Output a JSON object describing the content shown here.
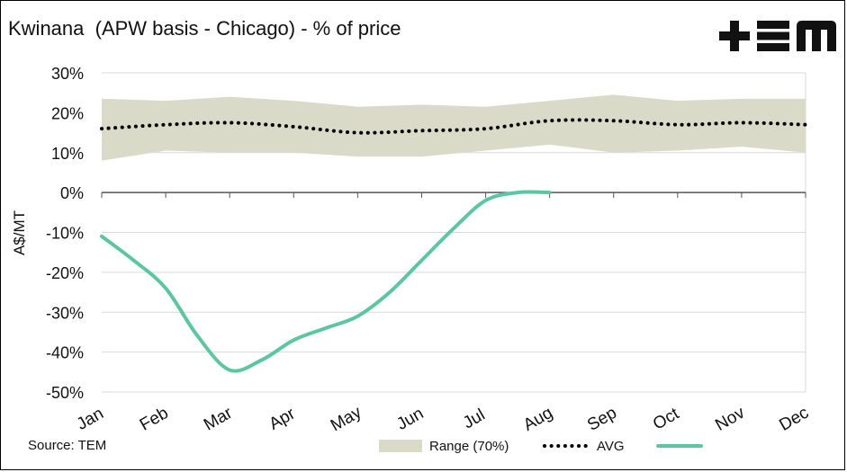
{
  "header": {
    "title": "Kwinana  (APW basis - Chicago) - % of price",
    "logo_text": "+EM"
  },
  "footer": {
    "source": "Source: TEM"
  },
  "colors": {
    "range_fill": "#d9dac8",
    "avg": "#000000",
    "current_line": "#5cc5a2",
    "grid": "#d9d9d9"
  },
  "chart_data": {
    "type": "line",
    "title": "Kwinana  (APW basis - Chicago) - % of price",
    "ylabel": "A$/MT",
    "xlabel": "",
    "categories": [
      "Jan",
      "Feb",
      "Mar",
      "Apr",
      "May",
      "Jun",
      "Jul",
      "Aug",
      "Sep",
      "Oct",
      "Nov",
      "Dec"
    ],
    "ylim": [
      -50,
      30
    ],
    "yticks": [
      30,
      20,
      10,
      0,
      -10,
      -20,
      -30,
      -40,
      -50
    ],
    "ytick_labels": [
      "30%",
      "20%",
      "10%",
      "0%",
      "-10%",
      "-20%",
      "-30%",
      "-40%",
      "-50%"
    ],
    "grid": true,
    "legend_position": "bottom",
    "series": [
      {
        "name": "Range (70%)",
        "kind": "band",
        "x": [
          0,
          1,
          2,
          3,
          4,
          5,
          6,
          7,
          8,
          9,
          10,
          11
        ],
        "upper": [
          23.5,
          23.0,
          24.0,
          23.0,
          21.5,
          22.0,
          21.5,
          23.0,
          24.5,
          23.0,
          23.5,
          23.5
        ],
        "lower": [
          8.0,
          10.5,
          10.0,
          10.0,
          9.0,
          9.0,
          10.5,
          12.0,
          10.0,
          10.5,
          11.5,
          10.0
        ]
      },
      {
        "name": "AVG",
        "kind": "dotted",
        "x": [
          0,
          1,
          2,
          3,
          4,
          5,
          6,
          7,
          8,
          9,
          10,
          11
        ],
        "values": [
          16.0,
          17.0,
          17.5,
          16.5,
          15.0,
          15.5,
          16.0,
          18.0,
          18.0,
          17.0,
          17.5,
          17.0
        ]
      },
      {
        "kind": "line",
        "x": [
          0,
          0.5,
          1,
          1.5,
          2,
          2.5,
          3,
          3.5,
          4,
          4.5,
          5,
          5.5,
          6,
          6.5,
          7
        ],
        "values": [
          -11,
          -17,
          -24,
          -36,
          -44.5,
          -42,
          -37,
          -34,
          -31,
          -25,
          -17,
          -9,
          -2,
          0,
          0
        ]
      }
    ]
  }
}
